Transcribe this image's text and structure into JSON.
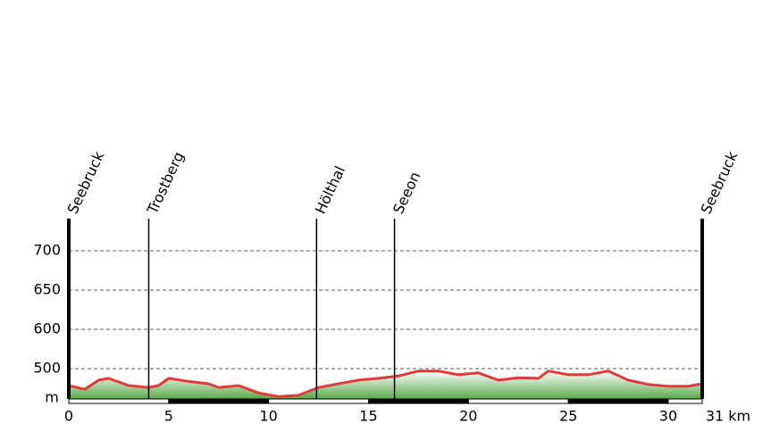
{
  "chart_data": {
    "type": "elevation-profile",
    "x": [
      0,
      0.8,
      1.5,
      2,
      3,
      4,
      4.5,
      5,
      6,
      7,
      7.5,
      8.5,
      9.5,
      10.5,
      11.5,
      12.5,
      13.5,
      14.5,
      15.5,
      16.5,
      17.5,
      18.5,
      19.5,
      20.5,
      21.5,
      22.5,
      23.5,
      24,
      25,
      26,
      27,
      28,
      29,
      30,
      31,
      31.7
    ],
    "series": [
      {
        "color": "#e03a3a",
        "values": [
          472,
          466,
          481,
          484,
          472,
          469,
          472,
          484,
          479,
          475,
          469,
          472,
          460,
          454,
          456,
          469,
          475,
          481,
          484,
          488,
          496,
          496,
          490,
          493,
          481,
          485,
          484,
          496,
          490,
          490,
          496,
          481,
          474,
          471,
          471,
          475
        ]
      }
    ],
    "places": [
      {
        "name": "Seebruck",
        "km": 0
      },
      {
        "name": "Trostberg",
        "km": 4
      },
      {
        "name": "Hölthal",
        "km": 12.4
      },
      {
        "name": "Seeon",
        "km": 16.3
      },
      {
        "name": "Seebruck",
        "km": 31.7
      }
    ],
    "xlim": [
      0,
      31.7
    ],
    "xticks": [
      0,
      5,
      10,
      15,
      20,
      25,
      30
    ],
    "x_end_label": "31 km",
    "ylim": [
      450,
      740
    ],
    "yticks": [
      500,
      600,
      650,
      700
    ],
    "y_unit": "m",
    "grid": true
  }
}
